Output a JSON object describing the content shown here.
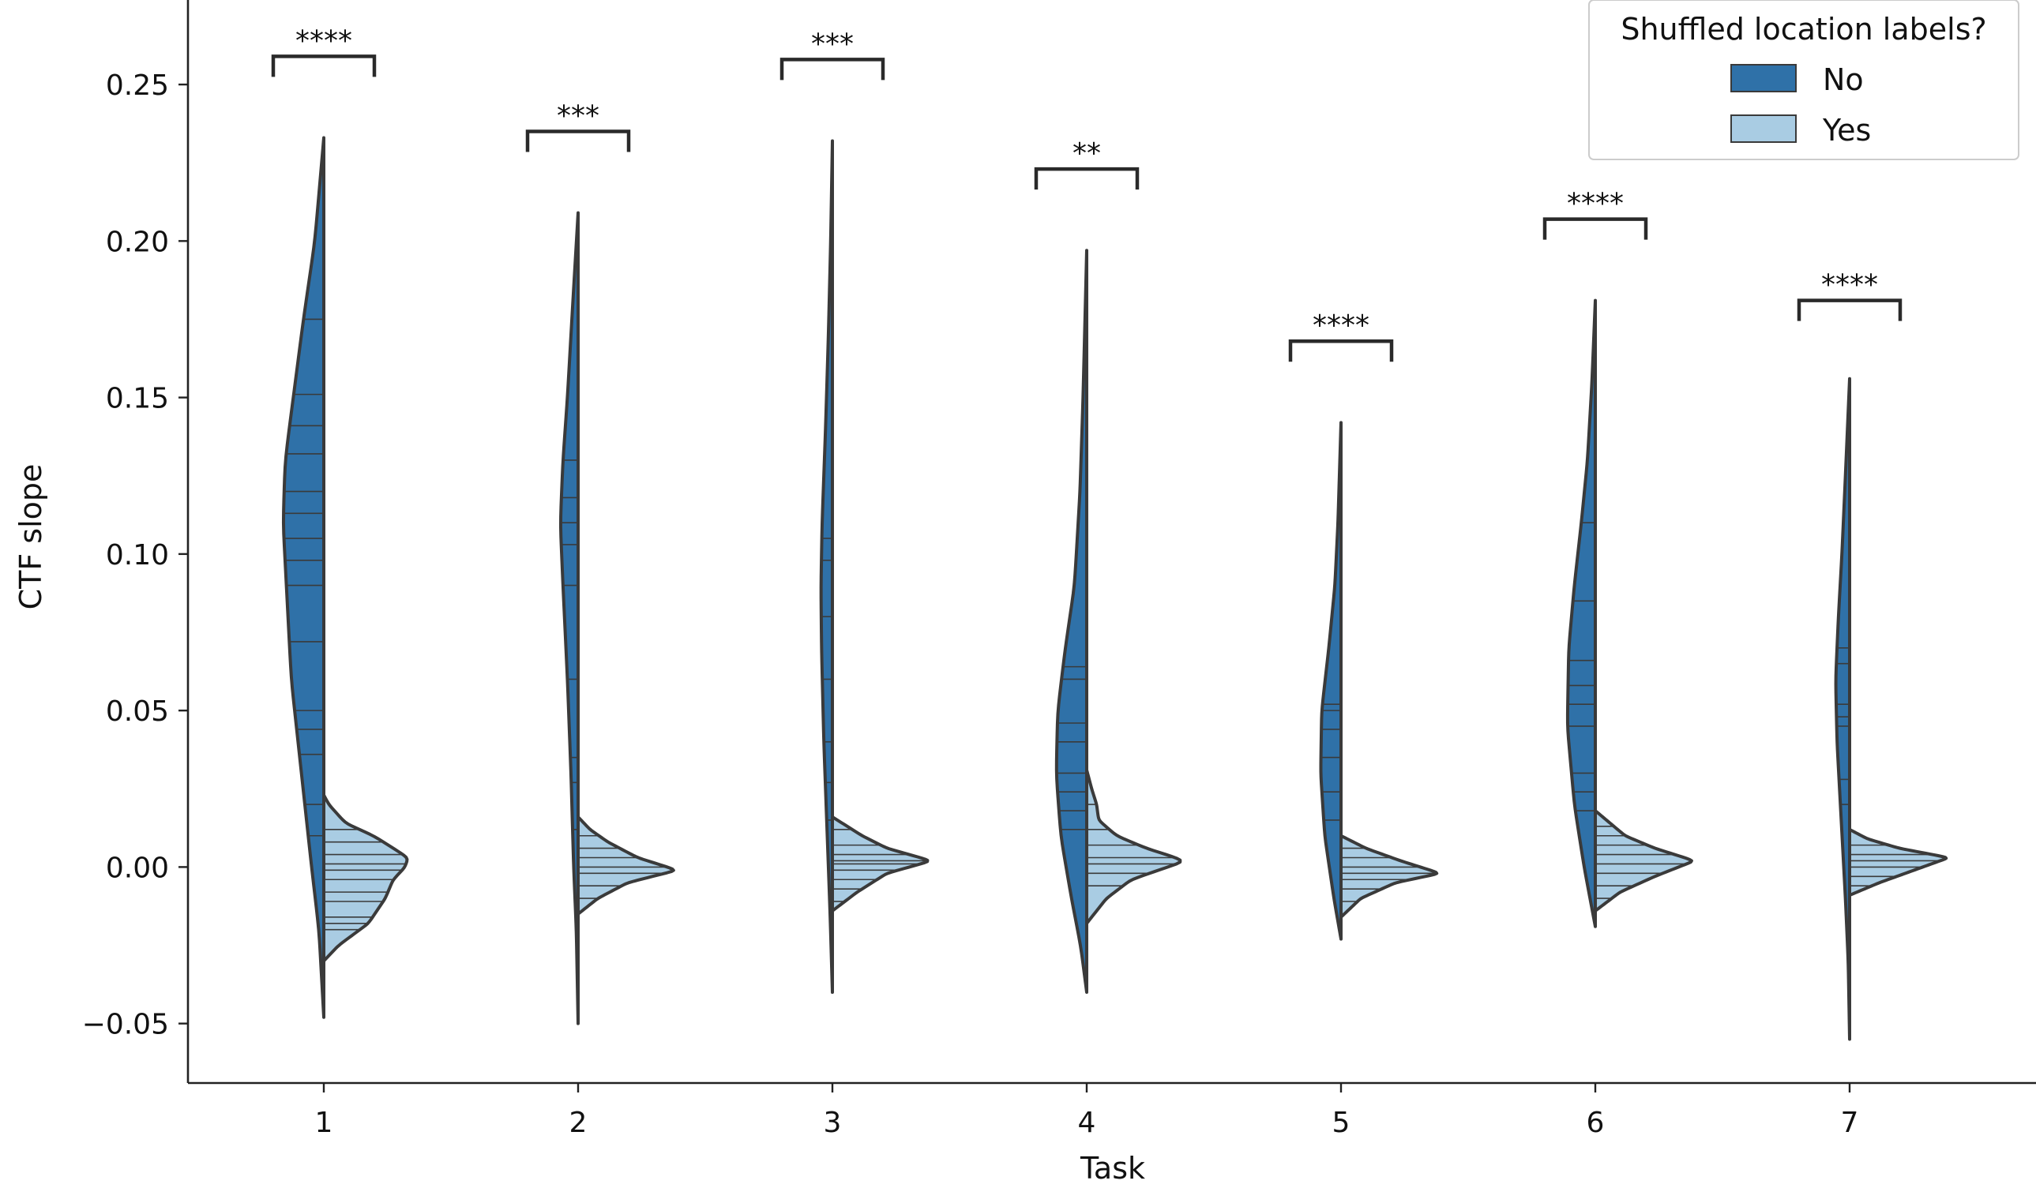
{
  "chart_data": {
    "type": "violin",
    "title": "",
    "xlabel": "Task",
    "ylabel": "CTF slope",
    "categories": [
      "1",
      "2",
      "3",
      "4",
      "5",
      "6",
      "7"
    ],
    "ylim": [
      -0.069,
      0.277
    ],
    "yticks": [
      -0.05,
      0.0,
      0.05,
      0.1,
      0.15,
      0.2,
      0.25
    ],
    "ytick_labels": [
      "−0.05",
      "0.00",
      "0.05",
      "0.10",
      "0.15",
      "0.20",
      "0.25"
    ],
    "grid": false,
    "legend": {
      "title": "Shuffled location labels?",
      "position": "top-right",
      "entries": [
        "No",
        "Yes"
      ]
    },
    "split": true,
    "inner": "stick",
    "series": [
      {
        "name": "No",
        "color": "#2f71a8",
        "violins": [
          {
            "category": "1",
            "min": -0.048,
            "max": 0.233,
            "width": 0.16,
            "profile": [
              [
                -0.048,
                0.0
              ],
              [
                -0.02,
                0.12
              ],
              [
                0.0,
                0.3
              ],
              [
                0.03,
                0.55
              ],
              [
                0.06,
                0.8
              ],
              [
                0.09,
                0.92
              ],
              [
                0.11,
                1.0
              ],
              [
                0.13,
                0.95
              ],
              [
                0.15,
                0.75
              ],
              [
                0.175,
                0.5
              ],
              [
                0.2,
                0.22
              ],
              [
                0.233,
                0.0
              ]
            ],
            "points": [
              0.175,
              0.151,
              0.141,
              0.132,
              0.12,
              0.113,
              0.105,
              0.098,
              0.09,
              0.072,
              0.05,
              0.044,
              0.036,
              0.02,
              0.01
            ]
          },
          {
            "category": "2",
            "min": -0.05,
            "max": 0.209,
            "width": 0.07,
            "profile": [
              [
                -0.05,
                0.0
              ],
              [
                -0.02,
                0.1
              ],
              [
                0.0,
                0.25
              ],
              [
                0.03,
                0.4
              ],
              [
                0.06,
                0.6
              ],
              [
                0.09,
                0.85
              ],
              [
                0.11,
                1.0
              ],
              [
                0.13,
                0.85
              ],
              [
                0.15,
                0.6
              ],
              [
                0.18,
                0.3
              ],
              [
                0.209,
                0.0
              ]
            ],
            "points": [
              0.13,
              0.118,
              0.11,
              0.103,
              0.09,
              0.06,
              0.035,
              0.027,
              0.012
            ]
          },
          {
            "category": "3",
            "min": -0.04,
            "max": 0.232,
            "width": 0.045,
            "profile": [
              [
                -0.04,
                0.0
              ],
              [
                -0.015,
                0.2
              ],
              [
                0.01,
                0.45
              ],
              [
                0.04,
                0.75
              ],
              [
                0.07,
                0.95
              ],
              [
                0.09,
                1.0
              ],
              [
                0.11,
                0.9
              ],
              [
                0.14,
                0.6
              ],
              [
                0.17,
                0.35
              ],
              [
                0.2,
                0.15
              ],
              [
                0.232,
                0.0
              ]
            ],
            "points": [
              0.105,
              0.098,
              0.08,
              0.06,
              0.04,
              0.027,
              0.015
            ]
          },
          {
            "category": "4",
            "min": -0.04,
            "max": 0.197,
            "width": 0.12,
            "profile": [
              [
                -0.04,
                0.0
              ],
              [
                -0.025,
                0.2
              ],
              [
                -0.01,
                0.5
              ],
              [
                0.01,
                0.85
              ],
              [
                0.03,
                1.0
              ],
              [
                0.05,
                0.95
              ],
              [
                0.07,
                0.7
              ],
              [
                0.09,
                0.4
              ],
              [
                0.12,
                0.22
              ],
              [
                0.15,
                0.12
              ],
              [
                0.197,
                0.0
              ]
            ],
            "points": [
              0.064,
              0.06,
              0.046,
              0.04,
              0.03,
              0.024,
              0.018,
              0.012
            ]
          },
          {
            "category": "5",
            "min": -0.023,
            "max": 0.142,
            "width": 0.08,
            "profile": [
              [
                -0.023,
                0.0
              ],
              [
                -0.01,
                0.35
              ],
              [
                0.01,
                0.8
              ],
              [
                0.03,
                1.0
              ],
              [
                0.05,
                0.95
              ],
              [
                0.07,
                0.6
              ],
              [
                0.09,
                0.3
              ],
              [
                0.11,
                0.15
              ],
              [
                0.142,
                0.0
              ]
            ],
            "points": [
              0.052,
              0.05,
              0.044,
              0.035,
              0.024,
              0.015
            ]
          },
          {
            "category": "6",
            "min": -0.019,
            "max": 0.181,
            "width": 0.11,
            "profile": [
              [
                -0.019,
                0.0
              ],
              [
                0.0,
                0.4
              ],
              [
                0.02,
                0.75
              ],
              [
                0.045,
                1.0
              ],
              [
                0.07,
                0.95
              ],
              [
                0.09,
                0.75
              ],
              [
                0.11,
                0.5
              ],
              [
                0.13,
                0.28
              ],
              [
                0.155,
                0.12
              ],
              [
                0.181,
                0.0
              ]
            ],
            "points": [
              0.11,
              0.085,
              0.066,
              0.058,
              0.052,
              0.045,
              0.03,
              0.024,
              0.018
            ]
          },
          {
            "category": "7",
            "min": -0.055,
            "max": 0.156,
            "width": 0.055,
            "profile": [
              [
                -0.055,
                0.0
              ],
              [
                -0.03,
                0.1
              ],
              [
                -0.01,
                0.3
              ],
              [
                0.015,
                0.6
              ],
              [
                0.04,
                0.9
              ],
              [
                0.06,
                1.0
              ],
              [
                0.08,
                0.8
              ],
              [
                0.1,
                0.55
              ],
              [
                0.125,
                0.3
              ],
              [
                0.156,
                0.0
              ]
            ],
            "points": [
              0.07,
              0.065,
              0.052,
              0.048,
              0.045,
              0.028,
              0.02
            ]
          }
        ]
      },
      {
        "name": "Yes",
        "color": "#a9cce3",
        "violins": [
          {
            "category": "1",
            "min": -0.03,
            "max": 0.023,
            "width": 0.39,
            "profile": [
              [
                -0.03,
                0.0
              ],
              [
                -0.025,
                0.15
              ],
              [
                -0.018,
                0.45
              ],
              [
                -0.01,
                0.62
              ],
              [
                -0.004,
                0.7
              ],
              [
                0.0,
                0.82
              ],
              [
                0.003,
                0.85
              ],
              [
                0.006,
                0.7
              ],
              [
                0.01,
                0.5
              ],
              [
                0.014,
                0.22
              ],
              [
                0.02,
                0.05
              ],
              [
                0.023,
                0.0
              ]
            ],
            "points": [
              0.012,
              0.008,
              0.004,
              0.001,
              -0.001,
              -0.004,
              -0.008,
              -0.011,
              -0.016,
              -0.018,
              -0.02
            ]
          },
          {
            "category": "2",
            "min": -0.015,
            "max": 0.016,
            "width": 0.39,
            "profile": [
              [
                -0.015,
                0.0
              ],
              [
                -0.01,
                0.2
              ],
              [
                -0.005,
                0.5
              ],
              [
                -0.001,
                1.0
              ],
              [
                0.003,
                0.6
              ],
              [
                0.008,
                0.3
              ],
              [
                0.012,
                0.12
              ],
              [
                0.016,
                0.0
              ]
            ],
            "points": [
              0.01,
              0.006,
              0.003,
              0.0,
              -0.002,
              -0.006,
              -0.01
            ]
          },
          {
            "category": "3",
            "min": -0.014,
            "max": 0.016,
            "width": 0.39,
            "profile": [
              [
                -0.014,
                0.0
              ],
              [
                -0.008,
                0.25
              ],
              [
                -0.002,
                0.55
              ],
              [
                0.002,
                1.0
              ],
              [
                0.006,
                0.55
              ],
              [
                0.01,
                0.3
              ],
              [
                0.016,
                0.0
              ]
            ],
            "points": [
              0.012,
              0.007,
              0.004,
              0.002,
              0.001,
              -0.001,
              -0.004,
              -0.007,
              -0.011
            ]
          },
          {
            "category": "4",
            "min": -0.018,
            "max": 0.031,
            "width": 0.39,
            "profile": [
              [
                -0.018,
                0.0
              ],
              [
                -0.01,
                0.2
              ],
              [
                -0.004,
                0.45
              ],
              [
                0.002,
                1.0
              ],
              [
                0.006,
                0.6
              ],
              [
                0.01,
                0.3
              ],
              [
                0.015,
                0.12
              ],
              [
                0.02,
                0.1
              ],
              [
                0.025,
                0.05
              ],
              [
                0.031,
                0.0
              ]
            ],
            "points": [
              0.02,
              0.012,
              0.007,
              0.003,
              0.001,
              -0.002,
              -0.006
            ]
          },
          {
            "category": "5",
            "min": -0.016,
            "max": 0.01,
            "width": 0.39,
            "profile": [
              [
                -0.016,
                0.0
              ],
              [
                -0.01,
                0.2
              ],
              [
                -0.005,
                0.55
              ],
              [
                -0.002,
                1.0
              ],
              [
                0.002,
                0.6
              ],
              [
                0.006,
                0.25
              ],
              [
                0.01,
                0.0
              ]
            ],
            "points": [
              0.006,
              0.003,
              0.0,
              -0.002,
              -0.004,
              -0.007,
              -0.011
            ]
          },
          {
            "category": "6",
            "min": -0.014,
            "max": 0.018,
            "width": 0.39,
            "profile": [
              [
                -0.014,
                0.0
              ],
              [
                -0.008,
                0.25
              ],
              [
                -0.003,
                0.6
              ],
              [
                0.002,
                1.0
              ],
              [
                0.006,
                0.6
              ],
              [
                0.01,
                0.3
              ],
              [
                0.018,
                0.0
              ]
            ],
            "points": [
              0.013,
              0.01,
              0.007,
              0.004,
              0.001,
              -0.002,
              -0.006,
              -0.01
            ]
          },
          {
            "category": "7",
            "min": -0.009,
            "max": 0.012,
            "width": 0.39,
            "profile": [
              [
                -0.009,
                0.0
              ],
              [
                -0.005,
                0.3
              ],
              [
                -0.001,
                0.65
              ],
              [
                0.003,
                1.0
              ],
              [
                0.006,
                0.5
              ],
              [
                0.009,
                0.18
              ],
              [
                0.012,
                0.0
              ]
            ],
            "points": [
              0.007,
              0.004,
              0.002,
              0.0,
              -0.003,
              -0.006
            ]
          }
        ]
      }
    ],
    "annotations": [
      {
        "category": "1",
        "label": "****",
        "y": 0.259
      },
      {
        "category": "2",
        "label": "***",
        "y": 0.235
      },
      {
        "category": "3",
        "label": "***",
        "y": 0.258
      },
      {
        "category": "4",
        "label": "**",
        "y": 0.223
      },
      {
        "category": "5",
        "label": "****",
        "y": 0.168
      },
      {
        "category": "6",
        "label": "****",
        "y": 0.207
      },
      {
        "category": "7",
        "label": "****",
        "y": 0.181
      }
    ]
  }
}
